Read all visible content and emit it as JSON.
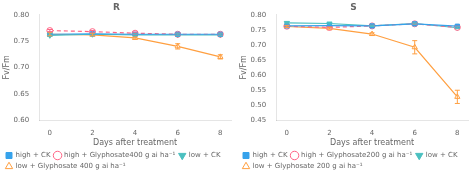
{
  "chart_data": [
    {
      "type": "line",
      "title": "R",
      "xlabel": "Days after treatment",
      "ylabel": "Fv/Fm",
      "x": [
        0,
        2,
        4,
        6,
        8
      ],
      "xlim": [
        -0.5,
        8.5
      ],
      "xticks": [
        0,
        2,
        4,
        6,
        8
      ],
      "ylim": [
        0.6,
        0.8
      ],
      "yticks": [
        {
          "value": 0.6,
          "label": "0.60"
        },
        0.65,
        {
          "value": 0.7,
          "label": "0.70"
        },
        0.75,
        {
          "value": 0.8,
          "label": "0.80"
        }
      ],
      "grid": false,
      "legend": "lower left",
      "series": [
        {
          "name": "high + CK",
          "values": [
            0.763,
            0.764,
            0.763,
            0.763,
            0.763
          ],
          "errors": [
            0.003,
            0.002,
            0.002,
            0.002,
            0.002
          ],
          "marker": "square",
          "line_style": "solid"
        },
        {
          "name": "high + Glyphosate400 g ai ha⁻¹",
          "values": [
            0.77,
            0.768,
            0.765,
            0.763,
            0.763
          ],
          "errors": [
            0.002,
            0.002,
            0.002,
            0.002,
            0.002
          ],
          "marker": "open_circle",
          "line_style": "dashed"
        },
        {
          "name": "low + CK",
          "values": [
            0.761,
            0.763,
            0.762,
            0.762,
            0.762
          ],
          "errors": [
            0.002,
            0.002,
            0.002,
            0.002,
            0.002
          ],
          "marker": "triangle_down",
          "line_style": "solid"
        },
        {
          "name": "low + Glyphosate 400 g ai ha⁻¹",
          "values": [
            0.763,
            0.762,
            0.756,
            0.74,
            0.72
          ],
          "errors": [
            0.003,
            0.002,
            0.002,
            0.005,
            0.004
          ],
          "marker": "open_triangle_up",
          "line_style": "solid"
        }
      ]
    },
    {
      "type": "line",
      "title": "S",
      "xlabel": "Days after treatment",
      "ylabel": "Fv/Fm",
      "x": [
        0,
        2,
        4,
        6,
        8
      ],
      "xlim": [
        -0.5,
        8.5
      ],
      "xticks": [
        0,
        2,
        4,
        6,
        8
      ],
      "ylim": [
        0.45,
        0.8
      ],
      "yticks": [
        0.45,
        {
          "value": 0.5,
          "label": "0.50"
        },
        0.55,
        {
          "value": 0.6,
          "label": "0.60"
        },
        0.65,
        {
          "value": 0.7,
          "label": "0.70"
        },
        0.75,
        {
          "value": 0.8,
          "label": "0.80"
        }
      ],
      "grid": false,
      "legend": "lower left",
      "series": [
        {
          "name": "high + CK",
          "values": [
            0.763,
            0.764,
            0.763,
            0.77,
            0.762
          ],
          "errors": [
            0.003,
            0.002,
            0.002,
            0.002,
            0.003
          ],
          "marker": "square",
          "line_style": "solid"
        },
        {
          "name": "high + Glyphosate200 g ai ha⁻¹",
          "values": [
            0.762,
            0.758,
            0.763,
            0.77,
            0.758
          ],
          "errors": [
            0.003,
            0.002,
            0.002,
            0.002,
            0.004
          ],
          "marker": "open_circle",
          "line_style": "dashed"
        },
        {
          "name": "low + CK",
          "values": [
            0.773,
            0.771,
            0.763,
            0.771,
            0.757
          ],
          "errors": [
            0.003,
            0.002,
            0.002,
            0.002,
            0.003
          ],
          "marker": "triangle_down",
          "line_style": "solid"
        },
        {
          "name": "low + Glyphosate 200 g ai ha⁻¹",
          "values": [
            0.761,
            0.755,
            0.736,
            0.692,
            0.527
          ],
          "errors": [
            0.003,
            0.003,
            0.004,
            0.022,
            0.022
          ],
          "marker": "open_triangle_up",
          "line_style": "solid"
        }
      ]
    }
  ]
}
